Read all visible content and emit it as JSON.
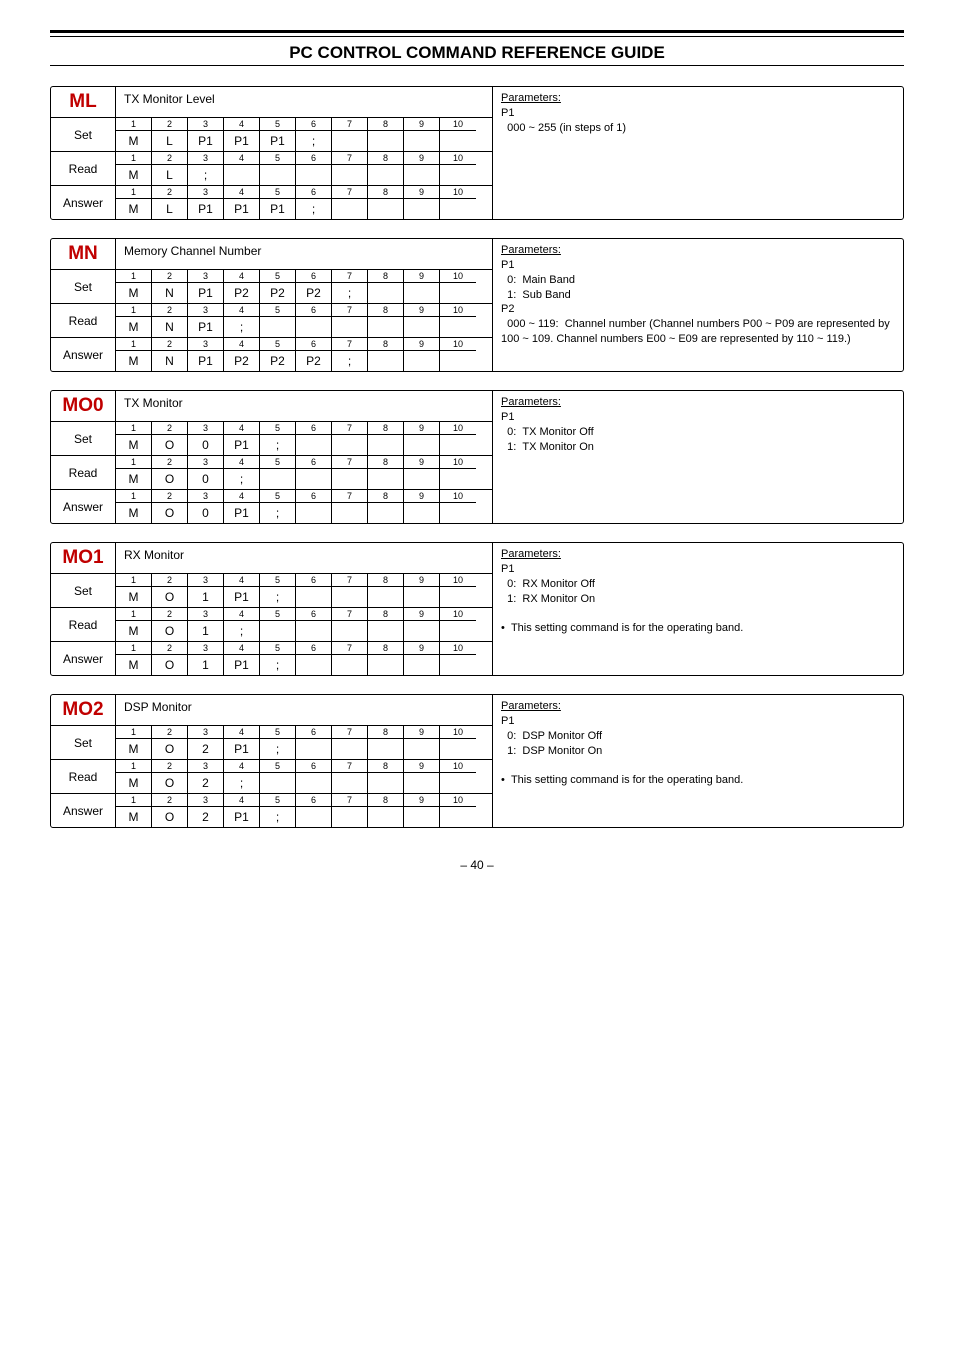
{
  "page_title": "PC CONTROL COMMAND REFERENCE GUIDE",
  "page_number": "– 40 –",
  "num_header": [
    "1",
    "2",
    "3",
    "4",
    "5",
    "6",
    "7",
    "8",
    "9",
    "10"
  ],
  "commands": [
    {
      "code": "ML",
      "desc_header": "TX Monitor Level",
      "rows": {
        "Set": [
          "M",
          "L",
          "P1",
          "P1",
          "P1",
          ";",
          "",
          "",
          "",
          ""
        ],
        "Read": [
          "M",
          "L",
          ";",
          "",
          "",
          "",
          "",
          "",
          "",
          ""
        ],
        "Answer": [
          "M",
          "L",
          "P1",
          "P1",
          "P1",
          ";",
          "",
          "",
          "",
          ""
        ]
      },
      "params_html": "<span class='u'>Parameters:</span><br>P1<br>&nbsp;&nbsp;000 ~ 255 (in steps of 1)"
    },
    {
      "code": "MN",
      "desc_header": "Memory Channel Number",
      "rows": {
        "Set": [
          "M",
          "N",
          "P1",
          "P2",
          "P2",
          "P2",
          ";",
          "",
          "",
          ""
        ],
        "Read": [
          "M",
          "N",
          "P1",
          ";",
          "",
          "",
          "",
          "",
          "",
          ""
        ],
        "Answer": [
          "M",
          "N",
          "P1",
          "P2",
          "P2",
          "P2",
          ";",
          "",
          "",
          ""
        ]
      },
      "params_html": "<span class='u'>Parameters:</span><br>P1<br>&nbsp;&nbsp;0: &nbsp;Main Band<br>&nbsp;&nbsp;1: &nbsp;Sub Band<br>P2<br>&nbsp;&nbsp;000 ~ 119: &nbsp;Channel number (Channel numbers P00 ~ P09 are represented by 100 ~ 109. Channel numbers E00 ~ E09 are represented by 110 ~ 119.)"
    },
    {
      "code": "MO0",
      "desc_header": "TX Monitor",
      "rows": {
        "Set": [
          "M",
          "O",
          "0",
          "P1",
          ";",
          "",
          "",
          "",
          "",
          ""
        ],
        "Read": [
          "M",
          "O",
          "0",
          ";",
          "",
          "",
          "",
          "",
          "",
          ""
        ],
        "Answer": [
          "M",
          "O",
          "0",
          "P1",
          ";",
          "",
          "",
          "",
          "",
          ""
        ]
      },
      "params_html": "<span class='u'>Parameters:</span><br>P1<br>&nbsp;&nbsp;0: &nbsp;TX Monitor Off<br>&nbsp;&nbsp;1: &nbsp;TX Monitor On"
    },
    {
      "code": "MO1",
      "desc_header": "RX Monitor",
      "rows": {
        "Set": [
          "M",
          "O",
          "1",
          "P1",
          ";",
          "",
          "",
          "",
          "",
          ""
        ],
        "Read": [
          "M",
          "O",
          "1",
          ";",
          "",
          "",
          "",
          "",
          "",
          ""
        ],
        "Answer": [
          "M",
          "O",
          "1",
          "P1",
          ";",
          "",
          "",
          "",
          "",
          ""
        ]
      },
      "params_html": "<span class='u'>Parameters:</span><br>P1<br>&nbsp;&nbsp;0: &nbsp;RX Monitor Off<br>&nbsp;&nbsp;1: &nbsp;RX Monitor On<br><br>•&nbsp;&nbsp;This setting command is for the operating band."
    },
    {
      "code": "MO2",
      "desc_header": "DSP Monitor",
      "rows": {
        "Set": [
          "M",
          "O",
          "2",
          "P1",
          ";",
          "",
          "",
          "",
          "",
          ""
        ],
        "Read": [
          "M",
          "O",
          "2",
          ";",
          "",
          "",
          "",
          "",
          "",
          ""
        ],
        "Answer": [
          "M",
          "O",
          "2",
          "P1",
          ";",
          "",
          "",
          "",
          "",
          ""
        ]
      },
      "params_html": "<span class='u'>Parameters:</span><br>P1<br>&nbsp;&nbsp;0: &nbsp;DSP Monitor Off<br>&nbsp;&nbsp;1: &nbsp;DSP Monitor On<br><br>•&nbsp;&nbsp;This setting command is for the operating band."
    }
  ]
}
